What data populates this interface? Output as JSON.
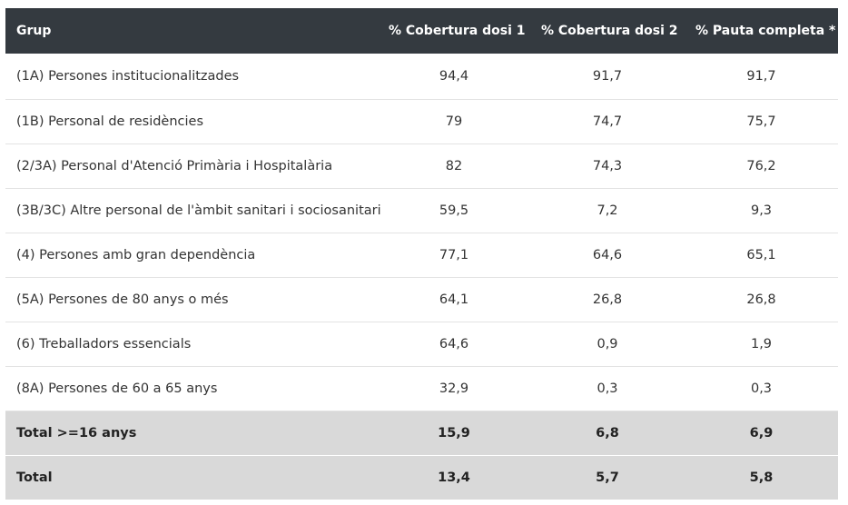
{
  "table": {
    "headers": [
      "Grup",
      "% Cobertura dosi 1",
      "% Cobertura dosi 2",
      "% Pauta completa *"
    ],
    "rows": [
      [
        "(1A) Persones institucionalitzades",
        "94,4",
        "91,7",
        "91,7"
      ],
      [
        "(1B) Personal de residències",
        "79",
        "74,7",
        "75,7"
      ],
      [
        "(2/3A) Personal d'Atenció Primària i Hospitalària",
        "82",
        "74,3",
        "76,2"
      ],
      [
        "(3B/3C) Altre personal de l'àmbit sanitari i sociosanitari",
        "59,5",
        "7,2",
        "9,3"
      ],
      [
        "(4) Persones amb gran dependència",
        "77,1",
        "64,6",
        "65,1"
      ],
      [
        "(5A) Persones de 80 anys o més",
        "64,1",
        "26,8",
        "26,8"
      ],
      [
        "(6) Treballadors essencials",
        "64,6",
        "0,9",
        "1,9"
      ],
      [
        "(8A) Persones de 60 a 65 anys",
        "32,9",
        "0,3",
        "0,3"
      ]
    ],
    "totals": [
      [
        "Total >=16 anys",
        "15,9",
        "6,8",
        "6,9"
      ],
      [
        "Total",
        "13,4",
        "5,7",
        "5,8"
      ]
    ]
  },
  "colors": {
    "header_bg": "#343a40",
    "header_text": "#ffffff",
    "total_bg": "#d9d9d9",
    "row_border": "#e3e3e3"
  }
}
